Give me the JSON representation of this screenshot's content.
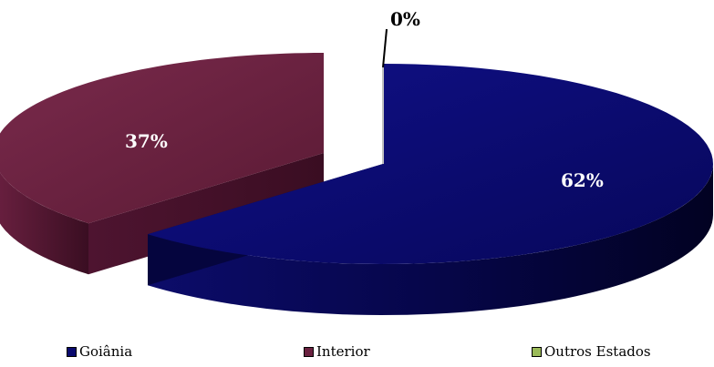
{
  "chart_data": {
    "type": "pie",
    "title": "",
    "categories": [
      "Goiânia",
      "Interior",
      "Outros Estados"
    ],
    "values": [
      62,
      37,
      0
    ],
    "labels": [
      "62%",
      "37%",
      "0%"
    ],
    "colors": {
      "Goiânia": "#0a0a6e",
      "Interior": "#6a2140",
      "Outros Estados": "#9bbb59"
    },
    "legend_position": "bottom",
    "style": "3d-exploded"
  }
}
